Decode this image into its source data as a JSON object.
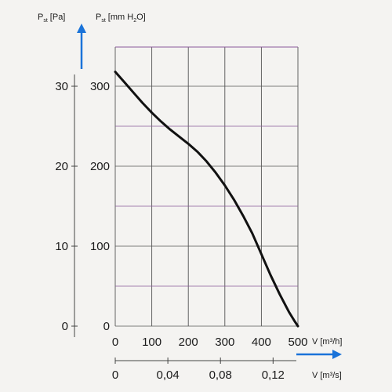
{
  "chart_data": {
    "type": "line",
    "title": "",
    "colors": {
      "arrow": "#1a73d9",
      "curve": "#111111",
      "grid": "#555555",
      "grid_accent": "#8a5a9a"
    },
    "x_axis_primary": {
      "label": "V",
      "unit": "[m³/h]",
      "range": [
        0,
        500
      ],
      "ticks": [
        "0",
        "100",
        "200",
        "300",
        "400",
        "500"
      ]
    },
    "x_axis_secondary": {
      "label": "V",
      "unit": "[m³/s]",
      "ticks": [
        {
          "value": 0,
          "label": "0"
        },
        {
          "value": 0.04,
          "label": "0,04"
        },
        {
          "value": 0.08,
          "label": "0,08"
        },
        {
          "value": 0.12,
          "label": "0,12"
        }
      ]
    },
    "y_axis_primary": {
      "label_main": "P",
      "label_sub": "st",
      "unit": "[mm H",
      "unit_sub": "2",
      "unit_end": "O]",
      "range": [
        0,
        300
      ],
      "ticks": [
        "0",
        "100",
        "200",
        "300"
      ]
    },
    "y_axis_secondary": {
      "label_main": "P",
      "label_sub": "st",
      "unit": "[Pa]",
      "ticks": [
        {
          "value": 0,
          "label": "0"
        },
        {
          "value": 10,
          "label": "10"
        },
        {
          "value": 20,
          "label": "20"
        },
        {
          "value": 30,
          "label": "30"
        }
      ]
    },
    "grid": true,
    "series": [
      {
        "x": [
          0,
          25,
          50,
          75,
          100,
          125,
          150,
          175,
          200,
          225,
          250,
          275,
          300,
          325,
          350,
          375,
          400,
          425,
          450,
          475,
          490,
          500
        ],
        "y": [
          318,
          305,
          292,
          279,
          267,
          256,
          246,
          237,
          228,
          218,
          206,
          192,
          176,
          158,
          138,
          116,
          90,
          64,
          40,
          18,
          7,
          0
        ]
      }
    ]
  }
}
